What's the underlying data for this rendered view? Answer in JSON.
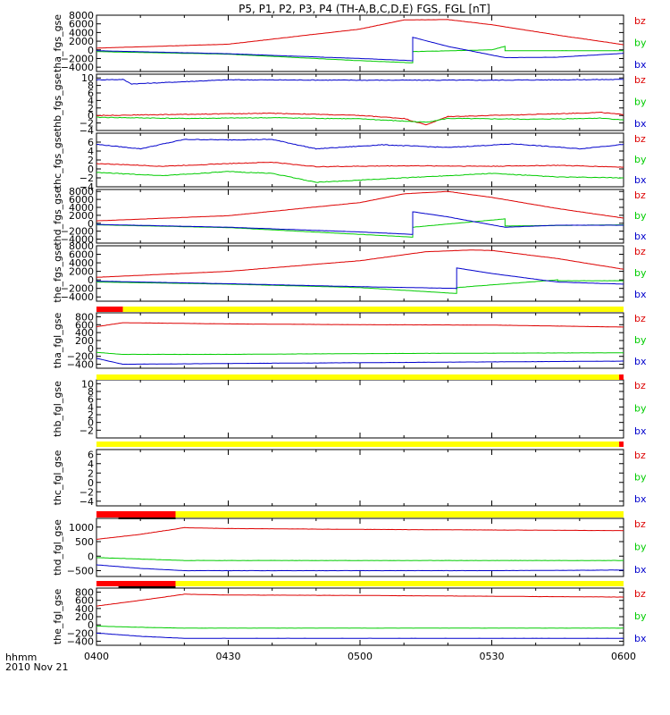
{
  "page": {
    "title": "P5, P1, P2, P3, P4 (TH-A,B,C,D,E) FGS, FGL [nT]",
    "time_label_line1": "hhmm",
    "time_label_line2": "2010 Nov 21"
  },
  "colors": {
    "bz": "#dd0000",
    "by": "#00cc00",
    "bx": "#0000cc",
    "bar_yellow": "#ffff00",
    "bar_red": "#ff0000",
    "bar_black": "#000000",
    "axis": "#000000"
  },
  "chart_data": {
    "type": "line",
    "x_unit": "hhmm",
    "xlim": [
      "0400",
      "0600"
    ],
    "x_ticks": [
      "0400",
      "0430",
      "0500",
      "0530",
      "0600"
    ],
    "legend": [
      "bz",
      "by",
      "bx"
    ],
    "panels": [
      {
        "ylabel": "tha_fgs_gse",
        "ylim": [
          -5000,
          8000
        ],
        "yticks": [
          8000,
          6000,
          4000,
          2000,
          0,
          -2000,
          -4000
        ],
        "ytick_labels": [
          "8000",
          "6000",
          "4000",
          "2000",
          "0",
          "−2000",
          "−4000"
        ],
        "series": [
          {
            "name": "bz",
            "x": [
              "0400",
              "0430",
              "0500",
              "0510",
              "0520",
              "0530",
              "0545",
              "0600"
            ],
            "y": [
              400,
              1300,
              4800,
              6900,
              7000,
              5800,
              3400,
              1200
            ]
          },
          {
            "name": "by",
            "x": [
              "0400",
              "0430",
              "0500",
              "0512",
              "0512",
              "0530",
              "0533",
              "0533",
              "0600"
            ],
            "y": [
              -400,
              -1000,
              -2500,
              -3000,
              -400,
              0,
              800,
              -200,
              -200
            ]
          },
          {
            "name": "bx",
            "x": [
              "0400",
              "0430",
              "0500",
              "0512",
              "0512",
              "0520",
              "0533",
              "0545",
              "0600"
            ],
            "y": [
              -200,
              -900,
              -2000,
              -2500,
              2900,
              800,
              -1800,
              -1700,
              -800
            ]
          }
        ]
      },
      {
        "ylabel": "thb_fgs_gse",
        "ylim": [
          -4,
          11
        ],
        "yticks": [
          10,
          8,
          6,
          4,
          2,
          0,
          -2,
          -4
        ],
        "ytick_labels": [
          "10",
          "8",
          "6",
          "4",
          "2",
          "0",
          "−2",
          "−4"
        ],
        "series": [
          {
            "name": "bz",
            "x": [
              "0400",
              "0420",
              "0440",
              "0500",
              "0510",
              "0515",
              "0520",
              "0540",
              "0555",
              "0600"
            ],
            "y": [
              0,
              0.3,
              0.6,
              0,
              -0.8,
              -2.5,
              -0.3,
              0.3,
              0.8,
              0.2
            ]
          },
          {
            "name": "by",
            "x": [
              "0400",
              "0420",
              "0440",
              "0500",
              "0510",
              "0515",
              "0520",
              "0540",
              "0555",
              "0600"
            ],
            "y": [
              -0.5,
              -0.8,
              -0.6,
              -0.9,
              -1.5,
              -1.8,
              -0.8,
              -1,
              -0.7,
              -1.2
            ]
          },
          {
            "name": "bx",
            "x": [
              "0400",
              "0406",
              "0408",
              "0430",
              "0500",
              "0530",
              "0600"
            ],
            "y": [
              9.5,
              9.6,
              8.4,
              9.5,
              9.4,
              9.4,
              9.6
            ]
          }
        ]
      },
      {
        "ylabel": "thc_fgs_gse",
        "ylim": [
          -4,
          8
        ],
        "yticks": [
          6,
          4,
          2,
          0,
          -2,
          -4
        ],
        "ytick_labels": [
          "6",
          "4",
          "2",
          "0",
          "−2",
          "−4"
        ],
        "series": [
          {
            "name": "bz",
            "x": [
              "0400",
              "0415",
              "0430",
              "0440",
              "0450",
              "0510",
              "0530",
              "0545",
              "0600"
            ],
            "y": [
              1.2,
              0.6,
              1.2,
              1.5,
              0.5,
              0.7,
              0.6,
              0.8,
              0.4
            ]
          },
          {
            "name": "by",
            "x": [
              "0400",
              "0415",
              "0430",
              "0440",
              "0450",
              "0510",
              "0530",
              "0545",
              "0600"
            ],
            "y": [
              -0.8,
              -1.5,
              -0.6,
              -1,
              -3,
              -2,
              -1,
              -1.8,
              -2
            ]
          },
          {
            "name": "bx",
            "x": [
              "0400",
              "0410",
              "0420",
              "0430",
              "0440",
              "0450",
              "0505",
              "0520",
              "0535",
              "0550",
              "0600"
            ],
            "y": [
              5.5,
              4.5,
              6.6,
              6.5,
              6.6,
              4.5,
              5.4,
              4.8,
              5.6,
              4.5,
              5.5
            ]
          }
        ]
      },
      {
        "ylabel": "thd_fgs_gse",
        "ylim": [
          -5000,
          8500
        ],
        "yticks": [
          8000,
          6000,
          4000,
          2000,
          0,
          -2000,
          -4000
        ],
        "ytick_labels": [
          "8000",
          "6000",
          "4000",
          "2000",
          "0",
          "−2000",
          "−4000"
        ],
        "series": [
          {
            "name": "bz",
            "x": [
              "0400",
              "0430",
              "0500",
              "0510",
              "0520",
              "0530",
              "0545",
              "0600"
            ],
            "y": [
              600,
              1900,
              5200,
              7400,
              8000,
              6500,
              3700,
              1300
            ]
          },
          {
            "name": "by",
            "x": [
              "0400",
              "0430",
              "0500",
              "0512",
              "0512",
              "0530",
              "0533",
              "0533",
              "0600"
            ],
            "y": [
              -400,
              -1100,
              -2800,
              -3500,
              -1000,
              800,
              1100,
              -700,
              -400
            ]
          },
          {
            "name": "bx",
            "x": [
              "0400",
              "0430",
              "0500",
              "0512",
              "0512",
              "0520",
              "0533",
              "0545",
              "0600"
            ],
            "y": [
              -300,
              -1000,
              -2200,
              -2800,
              2900,
              1600,
              -1000,
              -500,
              -500
            ]
          }
        ]
      },
      {
        "ylabel": "the_fgs_gse",
        "ylim": [
          -5000,
          8000
        ],
        "yticks": [
          8000,
          6000,
          4000,
          2000,
          0,
          -2000,
          -4000
        ],
        "ytick_labels": [
          "8000",
          "6000",
          "4000",
          "2000",
          "0",
          "−2000",
          "−4000"
        ],
        "series": [
          {
            "name": "bz",
            "x": [
              "0400",
              "0430",
              "0500",
              "0515",
              "0525",
              "0530",
              "0545",
              "0600"
            ],
            "y": [
              600,
              2000,
              4500,
              6600,
              7000,
              6900,
              5000,
              2500
            ]
          },
          {
            "name": "by",
            "x": [
              "0400",
              "0430",
              "0500",
              "0522",
              "0522",
              "0545",
              "0545",
              "0600"
            ],
            "y": [
              -500,
              -1000,
              -1800,
              -3200,
              -1800,
              0,
              -200,
              -200
            ]
          },
          {
            "name": "bx",
            "x": [
              "0400",
              "0430",
              "0500",
              "0522",
              "0522",
              "0530",
              "0545",
              "0600"
            ],
            "y": [
              -300,
              -900,
              -1600,
              -2000,
              2800,
              1500,
              -500,
              -1000
            ]
          }
        ]
      },
      {
        "ylabel": "tha_fgl_gse",
        "ylim": [
          -500,
          900
        ],
        "yticks": [
          800,
          600,
          400,
          200,
          0,
          -200,
          -400
        ],
        "ytick_labels": [
          "800",
          "600",
          "400",
          "200",
          "0",
          "−200",
          "−400"
        ],
        "bar": {
          "yellow": [
            "0400",
            "0600"
          ],
          "red": [
            [
              "0400",
              "0406"
            ]
          ],
          "black": []
        },
        "series": [
          {
            "name": "bz",
            "x": [
              "0400",
              "0406",
              "0430",
              "0500",
              "0530",
              "0600"
            ],
            "y": [
              550,
              650,
              620,
              600,
              590,
              540
            ]
          },
          {
            "name": "by",
            "x": [
              "0400",
              "0406",
              "0430",
              "0500",
              "0530",
              "0600"
            ],
            "y": [
              -100,
              -150,
              -150,
              -130,
              -120,
              -110
            ]
          },
          {
            "name": "bx",
            "x": [
              "0400",
              "0406",
              "0430",
              "0500",
              "0530",
              "0600"
            ],
            "y": [
              -250,
              -400,
              -380,
              -360,
              -340,
              -320
            ]
          }
        ]
      },
      {
        "ylabel": "thb_fgl_gse",
        "ylim": [
          -4,
          11
        ],
        "yticks": [
          10,
          8,
          6,
          4,
          2,
          0,
          -2
        ],
        "ytick_labels": [
          "10",
          "8",
          "6",
          "4",
          "2",
          "0",
          "−2"
        ],
        "bar": {
          "yellow": [
            "0400",
            "0600"
          ],
          "red": [
            [
              "0559",
              "0600"
            ]
          ],
          "black": []
        },
        "series": []
      },
      {
        "ylabel": "thc_fgl_gse",
        "ylim": [
          -5,
          7
        ],
        "yticks": [
          6,
          4,
          2,
          0,
          -2,
          -4
        ],
        "ytick_labels": [
          "6",
          "4",
          "2",
          "0",
          "−2",
          "−4"
        ],
        "bar": {
          "yellow": [
            "0400",
            "0600"
          ],
          "red": [
            [
              "0559",
              "0600"
            ]
          ],
          "black": []
        },
        "series": []
      },
      {
        "ylabel": "thd_fgl_gse",
        "ylim": [
          -700,
          1300
        ],
        "yticks": [
          1000,
          500,
          0,
          -500
        ],
        "ytick_labels": [
          "1000",
          "500",
          "0",
          "−500"
        ],
        "bar": {
          "yellow": [
            "0400",
            "0600"
          ],
          "red": [
            [
              "0400",
              "0418"
            ]
          ],
          "black": [
            [
              "0405",
              "0418"
            ]
          ]
        },
        "series": [
          {
            "name": "bz",
            "x": [
              "0400",
              "0410",
              "0420",
              "0430",
              "0500",
              "0530",
              "0600"
            ],
            "y": [
              580,
              750,
              980,
              950,
              920,
              900,
              880
            ]
          },
          {
            "name": "by",
            "x": [
              "0400",
              "0410",
              "0420",
              "0430",
              "0500",
              "0530",
              "0600"
            ],
            "y": [
              -50,
              -100,
              -150,
              -150,
              -150,
              -150,
              -150
            ]
          },
          {
            "name": "bx",
            "x": [
              "0400",
              "0410",
              "0420",
              "0430",
              "0500",
              "0530",
              "0600"
            ],
            "y": [
              -300,
              -420,
              -500,
              -500,
              -500,
              -500,
              -480
            ]
          }
        ]
      },
      {
        "ylabel": "the_fgl_gse",
        "ylim": [
          -500,
          900
        ],
        "yticks": [
          800,
          600,
          400,
          200,
          0,
          -200,
          -400
        ],
        "ytick_labels": [
          "800",
          "600",
          "400",
          "200",
          "0",
          "−200",
          "−400"
        ],
        "bar": {
          "yellow": [
            "0400",
            "0600"
          ],
          "red": [
            [
              "0400",
              "0418"
            ]
          ],
          "black": [
            [
              "0405",
              "0418"
            ]
          ]
        },
        "series": [
          {
            "name": "bz",
            "x": [
              "0400",
              "0410",
              "0420",
              "0430",
              "0500",
              "0530",
              "0600"
            ],
            "y": [
              460,
              600,
              750,
              730,
              720,
              700,
              680
            ]
          },
          {
            "name": "by",
            "x": [
              "0400",
              "0410",
              "0420",
              "0430",
              "0500",
              "0530",
              "0600"
            ],
            "y": [
              -30,
              -60,
              -80,
              -80,
              -80,
              -80,
              -80
            ]
          },
          {
            "name": "bx",
            "x": [
              "0400",
              "0410",
              "0420",
              "0430",
              "0500",
              "0530",
              "0600"
            ],
            "y": [
              -200,
              -280,
              -330,
              -330,
              -330,
              -330,
              -330
            ]
          }
        ]
      }
    ]
  }
}
